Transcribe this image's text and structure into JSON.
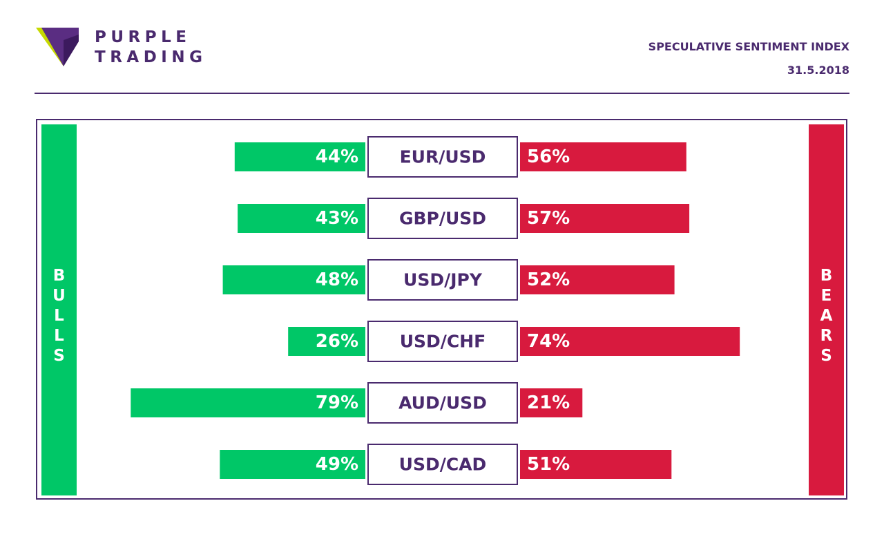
{
  "brand": {
    "line1": "PURPLE",
    "line2": "TRADING",
    "logo_icon": "purple-triangle-logo-icon"
  },
  "header": {
    "title": "SPECULATIVE SENTIMENT INDEX",
    "date": "31.5.2018"
  },
  "sides": {
    "bulls": "BULLS",
    "bears": "BEARS"
  },
  "colors": {
    "bull": "#00c767",
    "bear": "#d81a3e",
    "purple": "#4a2a6e"
  },
  "chart_data": {
    "type": "bar",
    "categories": [
      "EUR/USD",
      "GBP/USD",
      "USD/JPY",
      "USD/CHF",
      "AUD/USD",
      "USD/CAD"
    ],
    "series": [
      {
        "name": "BULLS",
        "values": [
          44,
          43,
          48,
          26,
          79,
          49
        ]
      },
      {
        "name": "BEARS",
        "values": [
          56,
          57,
          52,
          74,
          21,
          51
        ]
      }
    ],
    "title": "SPECULATIVE SENTIMENT INDEX",
    "xlabel": "",
    "ylabel": "",
    "unit": "%",
    "xlim": [
      0,
      100
    ]
  }
}
